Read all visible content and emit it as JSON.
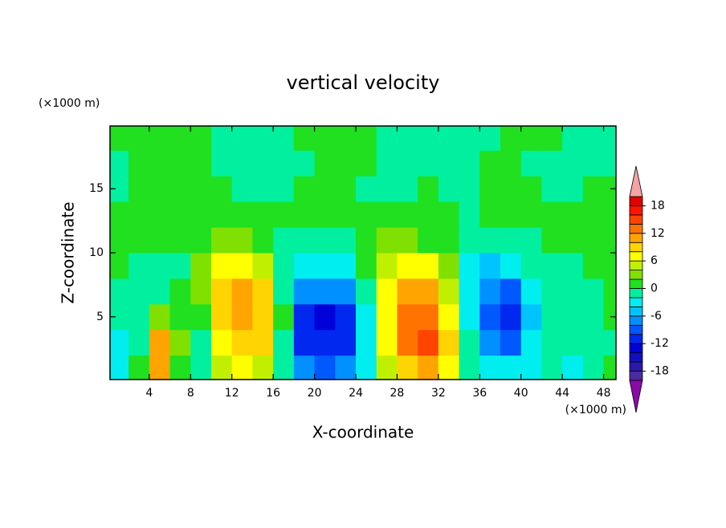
{
  "chart_data": {
    "type": "contour",
    "title": "vertical velocity",
    "x_label": "X-coordinate",
    "y_label": "Z-coordinate",
    "x_units": "(×1000 m)",
    "y_units": "(×1000 m)",
    "x": [
      1,
      3,
      5,
      7,
      9,
      11,
      13,
      15,
      17,
      19,
      21,
      23,
      25,
      27,
      29,
      31,
      33,
      35,
      37,
      39,
      41,
      43,
      45,
      47,
      49
    ],
    "y": [
      1,
      3,
      5,
      7,
      9,
      11,
      13,
      15,
      17,
      19
    ],
    "z": [
      [
        -4,
        0,
        10,
        0,
        -2,
        4,
        6,
        4,
        -2,
        -8,
        -10,
        -8,
        -4,
        4,
        8,
        10,
        6,
        -2,
        -4,
        -4,
        -3,
        -2,
        -4,
        -1,
        1
      ],
      [
        -3,
        -1,
        10,
        2,
        -1,
        6,
        8,
        8,
        -2,
        -12,
        -12,
        -12,
        -4,
        6,
        12,
        14,
        8,
        -2,
        -8,
        -10,
        -4,
        -2,
        -2,
        -2,
        -1
      ],
      [
        -2,
        -2,
        2,
        1,
        0,
        8,
        10,
        8,
        0,
        -12,
        -14,
        -12,
        -4,
        6,
        12,
        12,
        6,
        -4,
        -10,
        -12,
        -6,
        -2,
        -2,
        -1,
        0
      ],
      [
        -1,
        -2,
        -1,
        0,
        2,
        8,
        10,
        8,
        -2,
        -8,
        -8,
        -8,
        -2,
        6,
        10,
        10,
        4,
        -4,
        -8,
        -10,
        -4,
        -2,
        -2,
        -1,
        0
      ],
      [
        0,
        -2,
        -2,
        -1,
        2,
        6,
        6,
        4,
        -2,
        -4,
        -4,
        -4,
        0,
        4,
        6,
        6,
        2,
        -4,
        -6,
        -4,
        -2,
        -1,
        -1,
        0,
        0
      ],
      [
        0,
        0,
        0,
        1,
        0,
        2,
        2,
        1,
        -1,
        -2,
        -2,
        -1,
        1,
        2,
        2,
        1,
        0,
        -2,
        -2,
        -2,
        -1,
        0,
        0,
        0,
        1
      ],
      [
        1,
        1,
        1,
        0,
        1,
        1,
        0,
        0,
        1,
        0,
        1,
        0,
        1,
        1,
        1,
        0,
        0,
        -1,
        0,
        1,
        0,
        1,
        0,
        1,
        0
      ],
      [
        -1,
        1,
        1,
        1,
        1,
        1,
        -1,
        -1,
        -1,
        1,
        1,
        1,
        -1,
        -1,
        -1,
        1,
        -1,
        -1,
        1,
        1,
        1,
        -1,
        -1,
        1,
        1
      ],
      [
        -1,
        1,
        1,
        1,
        1,
        -1,
        -1,
        -1,
        -1,
        -1,
        1,
        1,
        1,
        -1,
        -1,
        -1,
        -1,
        -1,
        1,
        1,
        -1,
        -1,
        -1,
        -1,
        -1
      ],
      [
        1,
        1,
        1,
        1,
        1,
        -1,
        -1,
        -1,
        -1,
        1,
        1,
        1,
        1,
        -1,
        -1,
        -1,
        -1,
        -1,
        -1,
        1,
        1,
        1,
        -1,
        -1,
        -1
      ]
    ],
    "xlim": [
      0.2,
      49.2
    ],
    "ylim": [
      0.1,
      19.9
    ],
    "xticks": [
      4,
      8,
      12,
      16,
      20,
      24,
      28,
      32,
      36,
      40,
      44,
      48
    ],
    "yticks": [
      5,
      10,
      15
    ],
    "levels": [
      -20,
      -18,
      -16,
      -14,
      -12,
      -10,
      -8,
      -6,
      -4,
      -2,
      0,
      2,
      4,
      6,
      8,
      10,
      12,
      14,
      16,
      18,
      20
    ],
    "colors": [
      "#8a0aa8",
      "#4b2ca0",
      "#2a18a8",
      "#1010c0",
      "#0000d8",
      "#0028ee",
      "#0058ff",
      "#0090ff",
      "#00c4ff",
      "#00eef0",
      "#00f0a0",
      "#20e020",
      "#80e000",
      "#c0f000",
      "#ffff00",
      "#ffd400",
      "#ffa400",
      "#ff7400",
      "#ff4400",
      "#ff1400",
      "#e00000",
      "#f4a4a4"
    ],
    "cbar_ticks": [
      -18,
      -12,
      -6,
      0,
      6,
      12,
      18
    ]
  }
}
